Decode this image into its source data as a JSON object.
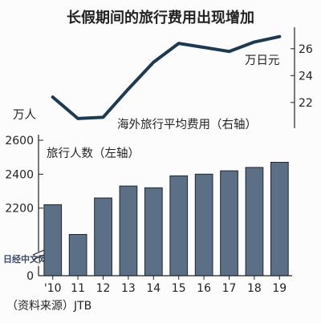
{
  "chart_data": {
    "title": "长假期间的旅行费用出现增加",
    "type": "bar+line",
    "categories": [
      "'10",
      "11",
      "12",
      "13",
      "14",
      "15",
      "16",
      "17",
      "18",
      "19"
    ],
    "bar_series": {
      "name": "旅行人数（左轴）",
      "unit": "万人",
      "values": [
        2220,
        2045,
        2260,
        2330,
        2320,
        2390,
        2400,
        2420,
        2440,
        2470
      ],
      "ylim": [
        0,
        2600
      ],
      "yticks": [
        0,
        2200,
        2400,
        2600
      ],
      "color": "#5b6f87"
    },
    "line_series": {
      "name": "海外旅行平均费用（右轴）",
      "unit": "万日元",
      "values": [
        22.4,
        20.8,
        20.9,
        23.0,
        25.0,
        26.4,
        26.1,
        25.8,
        26.5,
        26.9
      ],
      "ylim": [
        20.2,
        27.6
      ],
      "yticks": [
        22,
        24,
        26
      ],
      "color": "#1d3a55"
    },
    "source": "（资料来源）JTB"
  },
  "watermark": "日经中文网"
}
